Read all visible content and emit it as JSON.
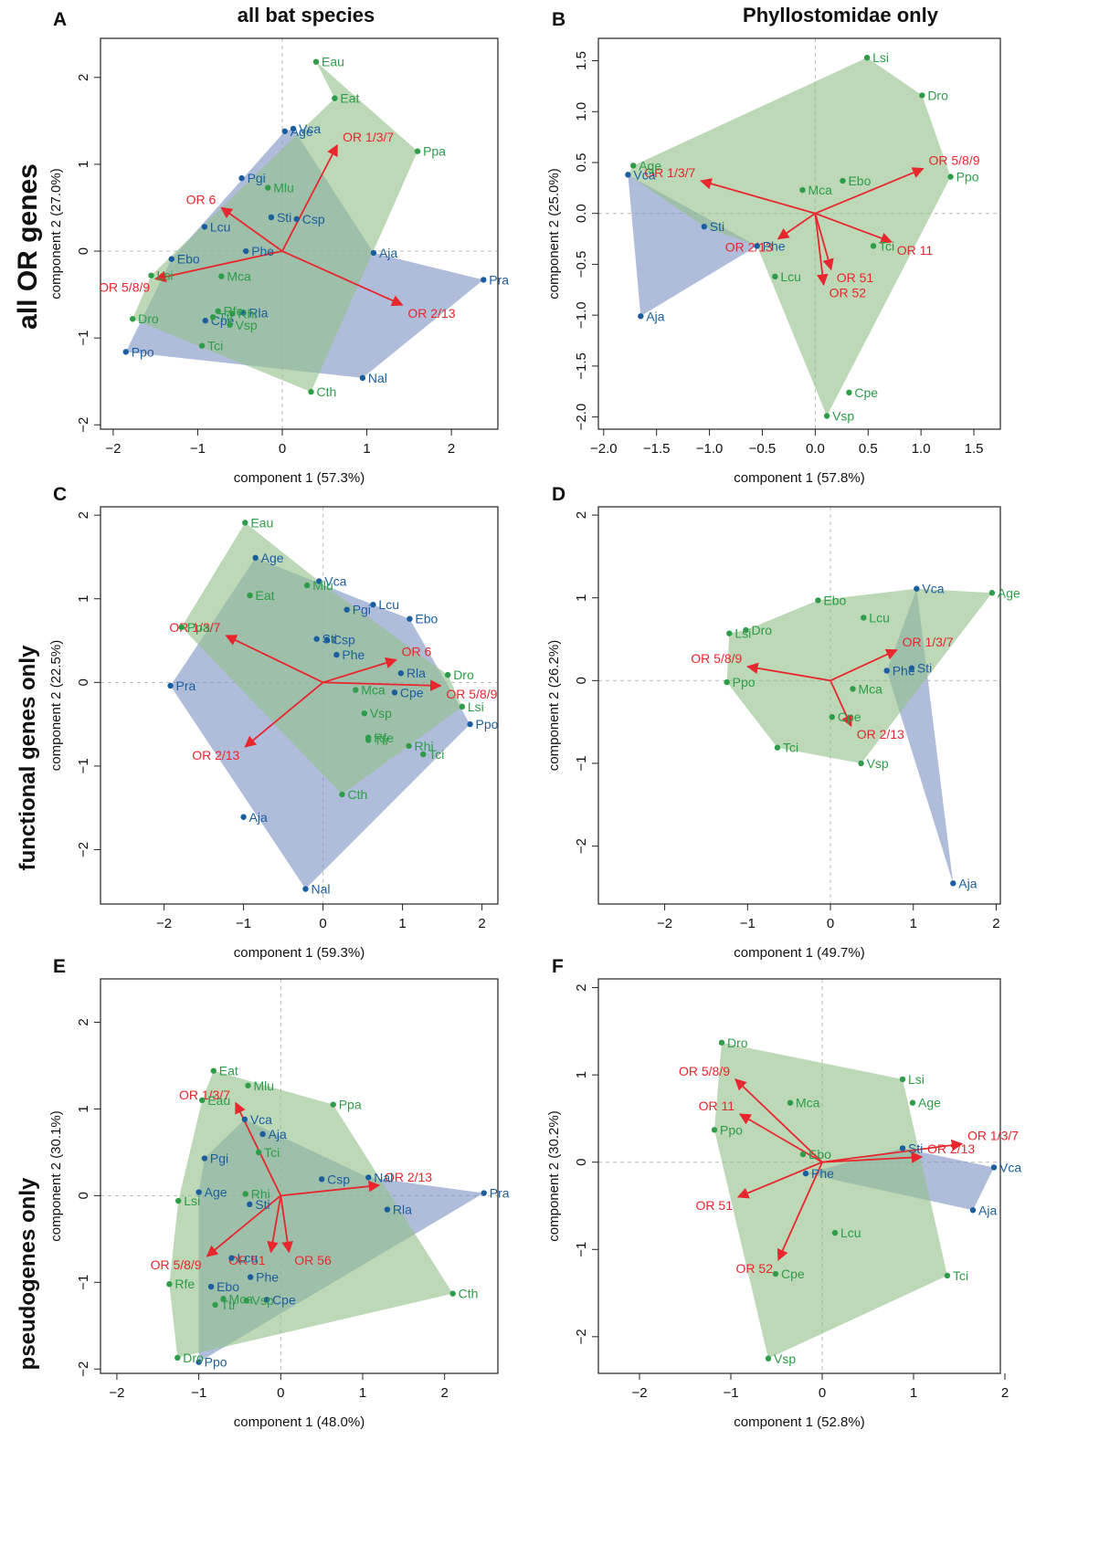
{
  "figure": {
    "column_titles": [
      "all bat species",
      "Phyllostomidae only"
    ],
    "row_labels": [
      "all OR genes",
      "functional genes only",
      "pseudogenes only"
    ]
  },
  "colors": {
    "group_a": "#1b5e9e",
    "group_b": "#2e9c49",
    "fill_a": "#7f95c4",
    "fill_b": "#93c08a",
    "loading": "#e8262d",
    "text_dark": "#111111",
    "zero_line": "#b8b8b8"
  },
  "chart_data": [
    {
      "panel": "A",
      "type": "scatter",
      "xlabel": "component 1 (57.3%)",
      "ylabel": "component 2 (27.0%)",
      "xlim": [
        -2.15,
        2.55
      ],
      "ylim": [
        -2.05,
        2.45
      ],
      "xticks": [
        -2,
        -1,
        0,
        1,
        2
      ],
      "yticks": [
        -2,
        -1,
        0,
        1,
        2
      ],
      "hull_a": [
        "Vca",
        "Aja",
        "Pra",
        "Nal",
        "Ppo",
        "Ebo",
        "Age"
      ],
      "hull_b": [
        "Eau",
        "Ppa",
        "Cth",
        "Dro",
        "Lsi",
        "Eat"
      ],
      "points_a": [
        {
          "label": "Vca",
          "x": 0.13,
          "y": 1.41
        },
        {
          "label": "Age",
          "x": 0.03,
          "y": 1.38
        },
        {
          "label": "Pgi",
          "x": -0.48,
          "y": 0.84
        },
        {
          "label": "Sti",
          "x": -0.13,
          "y": 0.39
        },
        {
          "label": "Csp",
          "x": 0.17,
          "y": 0.37
        },
        {
          "label": "Lcu",
          "x": -0.92,
          "y": 0.28
        },
        {
          "label": "Phe",
          "x": -0.43,
          "y": 0.0
        },
        {
          "label": "Aja",
          "x": 1.08,
          "y": -0.02
        },
        {
          "label": "Ebo",
          "x": -1.31,
          "y": -0.09
        },
        {
          "label": "Pra",
          "x": 2.38,
          "y": -0.33
        },
        {
          "label": "Rla",
          "x": -0.46,
          "y": -0.71
        },
        {
          "label": "Cpe",
          "x": -0.91,
          "y": -0.8
        },
        {
          "label": "Ppo",
          "x": -1.85,
          "y": -1.16
        },
        {
          "label": "Nal",
          "x": 0.95,
          "y": -1.46
        }
      ],
      "points_b": [
        {
          "label": "Eau",
          "x": 0.4,
          "y": 2.18
        },
        {
          "label": "Eat",
          "x": 0.62,
          "y": 1.76
        },
        {
          "label": "Ppa",
          "x": 1.6,
          "y": 1.15
        },
        {
          "label": "Mlu",
          "x": -0.17,
          "y": 0.73
        },
        {
          "label": "Lsi",
          "x": -1.55,
          "y": -0.28
        },
        {
          "label": "Mca",
          "x": -0.72,
          "y": -0.29
        },
        {
          "label": "Rfe",
          "x": -0.76,
          "y": -0.69
        },
        {
          "label": "Rhi",
          "x": -0.59,
          "y": -0.72
        },
        {
          "label": "Ttr",
          "x": -0.82,
          "y": -0.76
        },
        {
          "label": "Dro",
          "x": -1.77,
          "y": -0.78
        },
        {
          "label": "Vsp",
          "x": -0.62,
          "y": -0.85
        },
        {
          "label": "Tci",
          "x": -0.95,
          "y": -1.09
        },
        {
          "label": "Cth",
          "x": 0.34,
          "y": -1.62
        }
      ],
      "loadings": [
        {
          "label": "OR 1/3/7",
          "x": 0.65,
          "y": 1.22
        },
        {
          "label": "OR 6",
          "x": -0.72,
          "y": 0.5
        },
        {
          "label": "OR 5/8/9",
          "x": -1.5,
          "y": -0.32
        },
        {
          "label": "OR 2/13",
          "x": 1.42,
          "y": -0.62
        }
      ]
    },
    {
      "panel": "B",
      "type": "scatter",
      "xlabel": "component 1 (57.8%)",
      "ylabel": "component 2 (25.0%)",
      "xlim": [
        -2.05,
        1.75
      ],
      "ylim": [
        -2.12,
        1.72
      ],
      "xticks": [
        -2.0,
        -1.5,
        -1.0,
        -0.5,
        0.0,
        0.5,
        1.0,
        1.5
      ],
      "yticks": [
        -2.0,
        -1.5,
        -1.0,
        -0.5,
        0.0,
        0.5,
        1.0,
        1.5
      ],
      "hull_a": [
        "Vca",
        "Phe",
        "Aja"
      ],
      "hull_b": [
        "Lsi",
        "Dro",
        "Ppo",
        "Vsp",
        "Phe",
        "Sti",
        "Vca",
        "Age"
      ],
      "points_a": [
        {
          "label": "Vca",
          "x": -1.77,
          "y": 0.38
        },
        {
          "label": "Sti",
          "x": -1.05,
          "y": -0.13
        },
        {
          "label": "Phe",
          "x": -0.55,
          "y": -0.32
        },
        {
          "label": "Aja",
          "x": -1.65,
          "y": -1.01
        }
      ],
      "points_b": [
        {
          "label": "Lsi",
          "x": 0.49,
          "y": 1.53
        },
        {
          "label": "Dro",
          "x": 1.01,
          "y": 1.16
        },
        {
          "label": "Age",
          "x": -1.72,
          "y": 0.47
        },
        {
          "label": "Ppo",
          "x": 1.28,
          "y": 0.36
        },
        {
          "label": "Ebo",
          "x": 0.26,
          "y": 0.32
        },
        {
          "label": "Mca",
          "x": -0.12,
          "y": 0.23
        },
        {
          "label": "Tci",
          "x": 0.55,
          "y": -0.32
        },
        {
          "label": "Lcu",
          "x": -0.38,
          "y": -0.62
        },
        {
          "label": "Cpe",
          "x": 0.32,
          "y": -1.76
        },
        {
          "label": "Vsp",
          "x": 0.11,
          "y": -1.99
        }
      ],
      "loadings": [
        {
          "label": "OR 1/3/7",
          "x": -1.08,
          "y": 0.32
        },
        {
          "label": "OR 5/8/9",
          "x": 1.02,
          "y": 0.44
        },
        {
          "label": "OR 2/13",
          "x": -0.35,
          "y": -0.25
        },
        {
          "label": "OR 11",
          "x": 0.72,
          "y": -0.28
        },
        {
          "label": "OR 51",
          "x": 0.15,
          "y": -0.55
        },
        {
          "label": "OR 52",
          "x": 0.08,
          "y": -0.7
        }
      ]
    },
    {
      "panel": "C",
      "type": "scatter",
      "xlabel": "component 1 (59.3%)",
      "ylabel": "component 2 (22.5%)",
      "xlim": [
        -2.8,
        2.2
      ],
      "ylim": [
        -2.65,
        2.1
      ],
      "xticks": [
        -2,
        -1,
        0,
        1,
        2
      ],
      "yticks": [
        -2,
        -1,
        0,
        1,
        2
      ],
      "hull_a": [
        "Age",
        "Lcu",
        "Ebo",
        "Ppo",
        "Nal",
        "Pra"
      ],
      "hull_b": [
        "Eau",
        "Vca",
        "Dro",
        "Lsi",
        "Cth",
        "Ppa"
      ],
      "points_a": [
        {
          "label": "Age",
          "x": -0.85,
          "y": 1.49
        },
        {
          "label": "Vca",
          "x": -0.05,
          "y": 1.21
        },
        {
          "label": "Lcu",
          "x": 0.63,
          "y": 0.93
        },
        {
          "label": "Pgi",
          "x": 0.3,
          "y": 0.87
        },
        {
          "label": "Ebo",
          "x": 1.09,
          "y": 0.76
        },
        {
          "label": "Sti",
          "x": -0.08,
          "y": 0.52
        },
        {
          "label": "Csp",
          "x": 0.05,
          "y": 0.51
        },
        {
          "label": "Phe",
          "x": 0.17,
          "y": 0.33
        },
        {
          "label": "Rla",
          "x": 0.98,
          "y": 0.11
        },
        {
          "label": "Pra",
          "x": -1.92,
          "y": -0.04
        },
        {
          "label": "Cpe",
          "x": 0.9,
          "y": -0.12
        },
        {
          "label": "Ppo",
          "x": 1.85,
          "y": -0.5
        },
        {
          "label": "Aja",
          "x": -1.0,
          "y": -1.61
        },
        {
          "label": "Nal",
          "x": -0.22,
          "y": -2.47
        }
      ],
      "points_b": [
        {
          "label": "Eau",
          "x": -0.98,
          "y": 1.91
        },
        {
          "label": "Mlu",
          "x": -0.2,
          "y": 1.16
        },
        {
          "label": "Eat",
          "x": -0.92,
          "y": 1.04
        },
        {
          "label": "Ppa",
          "x": -1.78,
          "y": 0.66
        },
        {
          "label": "Dro",
          "x": 1.57,
          "y": 0.09
        },
        {
          "label": "Mca",
          "x": 0.41,
          "y": -0.09
        },
        {
          "label": "Lsi",
          "x": 1.75,
          "y": -0.29
        },
        {
          "label": "Vsp",
          "x": 0.52,
          "y": -0.37
        },
        {
          "label": "Rfe",
          "x": 0.57,
          "y": -0.66
        },
        {
          "label": "Ttr",
          "x": 0.57,
          "y": -0.69
        },
        {
          "label": "Rhi",
          "x": 1.08,
          "y": -0.76
        },
        {
          "label": "Tci",
          "x": 1.26,
          "y": -0.86
        },
        {
          "label": "Cth",
          "x": 0.24,
          "y": -1.34
        }
      ],
      "loadings": [
        {
          "label": "OR 1/3/7",
          "x": -1.22,
          "y": 0.56
        },
        {
          "label": "OR 6",
          "x": 0.92,
          "y": 0.27
        },
        {
          "label": "OR 5/8/9",
          "x": 1.48,
          "y": -0.04
        },
        {
          "label": "OR 2/13",
          "x": -0.98,
          "y": -0.77
        }
      ]
    },
    {
      "panel": "D",
      "type": "scatter",
      "xlabel": "component 1 (49.7%)",
      "ylabel": "component 2 (26.2%)",
      "xlim": [
        -2.8,
        2.05
      ],
      "ylim": [
        -2.7,
        2.1
      ],
      "xticks": [
        -2,
        -1,
        0,
        1,
        2
      ],
      "yticks": [
        -2,
        -1,
        0,
        1,
        2
      ],
      "hull_a": [
        "Vca",
        "Aja",
        "Phe"
      ],
      "hull_b": [
        "Ebo",
        "Vca",
        "Age",
        "Vsp",
        "Tci",
        "Ppo",
        "Lsi",
        "Dro"
      ],
      "points_a": [
        {
          "label": "Vca",
          "x": 1.04,
          "y": 1.11
        },
        {
          "label": "Sti",
          "x": 0.98,
          "y": 0.15
        },
        {
          "label": "Phe",
          "x": 0.68,
          "y": 0.12
        },
        {
          "label": "Aja",
          "x": 1.48,
          "y": -2.45
        }
      ],
      "points_b": [
        {
          "label": "Age",
          "x": 1.95,
          "y": 1.06
        },
        {
          "label": "Ebo",
          "x": -0.15,
          "y": 0.97
        },
        {
          "label": "Lcu",
          "x": 0.4,
          "y": 0.76
        },
        {
          "label": "Dro",
          "x": -1.02,
          "y": 0.61
        },
        {
          "label": "Lsi",
          "x": -1.22,
          "y": 0.57
        },
        {
          "label": "Ppo",
          "x": -1.25,
          "y": -0.02
        },
        {
          "label": "Mca",
          "x": 0.27,
          "y": -0.1
        },
        {
          "label": "Cpe",
          "x": 0.02,
          "y": -0.44
        },
        {
          "label": "Tci",
          "x": -0.64,
          "y": -0.81
        },
        {
          "label": "Vsp",
          "x": 0.37,
          "y": -1.0
        }
      ],
      "loadings": [
        {
          "label": "OR 5/8/9",
          "x": -1.0,
          "y": 0.17
        },
        {
          "label": "OR 1/3/7",
          "x": 0.8,
          "y": 0.37
        },
        {
          "label": "OR 2/13",
          "x": 0.25,
          "y": -0.55
        }
      ]
    },
    {
      "panel": "E",
      "type": "scatter",
      "xlabel": "component 1 (48.0%)",
      "ylabel": "component 2 (30.1%)",
      "xlim": [
        -2.2,
        2.65
      ],
      "ylim": [
        -2.05,
        2.5
      ],
      "xticks": [
        -2,
        -1,
        0,
        1,
        2
      ],
      "yticks": [
        -2,
        -1,
        0,
        1,
        2
      ],
      "hull_a": [
        "Pgi",
        "Vca",
        "Nal",
        "Pra",
        "Ppo",
        "Age"
      ],
      "hull_b": [
        "Eat",
        "Ppa",
        "Cth",
        "Dro",
        "Rfe",
        "Lsi",
        "Eau"
      ],
      "points_a": [
        {
          "label": "Vca",
          "x": -0.44,
          "y": 0.88
        },
        {
          "label": "Aja",
          "x": -0.22,
          "y": 0.71
        },
        {
          "label": "Pgi",
          "x": -0.93,
          "y": 0.43
        },
        {
          "label": "Csp",
          "x": 0.5,
          "y": 0.19
        },
        {
          "label": "Nal",
          "x": 1.07,
          "y": 0.21
        },
        {
          "label": "Age",
          "x": -1.0,
          "y": 0.04
        },
        {
          "label": "Pra",
          "x": 2.48,
          "y": 0.03
        },
        {
          "label": "Sti",
          "x": -0.38,
          "y": -0.1
        },
        {
          "label": "Rla",
          "x": 1.3,
          "y": -0.16
        },
        {
          "label": "Lcu",
          "x": -0.6,
          "y": -0.72
        },
        {
          "label": "Phe",
          "x": -0.37,
          "y": -0.94
        },
        {
          "label": "Ebo",
          "x": -0.85,
          "y": -1.05
        },
        {
          "label": "Cpe",
          "x": -0.17,
          "y": -1.2
        },
        {
          "label": "Ppo",
          "x": -1.0,
          "y": -1.92
        }
      ],
      "points_b": [
        {
          "label": "Eat",
          "x": -0.82,
          "y": 1.44
        },
        {
          "label": "Mlu",
          "x": -0.4,
          "y": 1.27
        },
        {
          "label": "Eau",
          "x": -0.96,
          "y": 1.1
        },
        {
          "label": "Ppa",
          "x": 0.64,
          "y": 1.05
        },
        {
          "label": "Tci",
          "x": -0.27,
          "y": 0.5
        },
        {
          "label": "Rhi",
          "x": -0.43,
          "y": 0.02
        },
        {
          "label": "Lsi",
          "x": -1.25,
          "y": -0.06
        },
        {
          "label": "Rfe",
          "x": -1.36,
          "y": -1.02
        },
        {
          "label": "Mca",
          "x": -0.7,
          "y": -1.19
        },
        {
          "label": "Vsp",
          "x": -0.42,
          "y": -1.21
        },
        {
          "label": "Cth",
          "x": 2.1,
          "y": -1.13
        },
        {
          "label": "Ttr",
          "x": -0.8,
          "y": -1.26
        },
        {
          "label": "Dro",
          "x": -1.26,
          "y": -1.87
        }
      ],
      "loadings": [
        {
          "label": "OR 1/3/7",
          "x": -0.55,
          "y": 1.07
        },
        {
          "label": "OR 2/13",
          "x": 1.2,
          "y": 0.12
        },
        {
          "label": "OR 5/8/9",
          "x": -0.9,
          "y": -0.7
        },
        {
          "label": "OR 51",
          "x": -0.12,
          "y": -0.65
        },
        {
          "label": "OR 56",
          "x": 0.1,
          "y": -0.65
        }
      ]
    },
    {
      "panel": "F",
      "type": "scatter",
      "xlabel": "component 1 (52.8%)",
      "ylabel": "component 2 (30.2%)",
      "xlim": [
        -2.45,
        1.95
      ],
      "ylim": [
        -2.42,
        2.1
      ],
      "xticks": [
        -2,
        -1,
        0,
        1,
        2
      ],
      "yticks": [
        -2,
        -1,
        0,
        1,
        2
      ],
      "hull_a": [
        "Sti",
        "Vca",
        "Aja",
        "Phe"
      ],
      "hull_b": [
        "Dro",
        "Lsi",
        "Tci",
        "Vsp",
        "Ppo"
      ],
      "points_a": [
        {
          "label": "Sti",
          "x": 0.88,
          "y": 0.16
        },
        {
          "label": "Vca",
          "x": 1.88,
          "y": -0.06
        },
        {
          "label": "Phe",
          "x": -0.18,
          "y": -0.13
        },
        {
          "label": "Aja",
          "x": 1.65,
          "y": -0.55
        }
      ],
      "points_b": [
        {
          "label": "Dro",
          "x": -1.1,
          "y": 1.37
        },
        {
          "label": "Lsi",
          "x": 0.88,
          "y": 0.95
        },
        {
          "label": "Mca",
          "x": -0.35,
          "y": 0.68
        },
        {
          "label": "Age",
          "x": 0.99,
          "y": 0.68
        },
        {
          "label": "Ppo",
          "x": -1.18,
          "y": 0.37
        },
        {
          "label": "Ebo",
          "x": -0.21,
          "y": 0.09
        },
        {
          "label": "Lcu",
          "x": 0.14,
          "y": -0.81
        },
        {
          "label": "Cpe",
          "x": -0.51,
          "y": -1.28
        },
        {
          "label": "Tci",
          "x": 1.37,
          "y": -1.3
        },
        {
          "label": "Vsp",
          "x": -0.59,
          "y": -2.25
        }
      ],
      "loadings": [
        {
          "label": "OR 5/8/9",
          "x": -0.95,
          "y": 0.95
        },
        {
          "label": "OR 11",
          "x": -0.9,
          "y": 0.55
        },
        {
          "label": "OR 1/3/7",
          "x": 1.53,
          "y": 0.21
        },
        {
          "label": "OR 2/13",
          "x": 1.09,
          "y": 0.06
        },
        {
          "label": "OR 51",
          "x": -0.92,
          "y": -0.4
        },
        {
          "label": "OR 52",
          "x": -0.48,
          "y": -1.12
        }
      ]
    }
  ]
}
